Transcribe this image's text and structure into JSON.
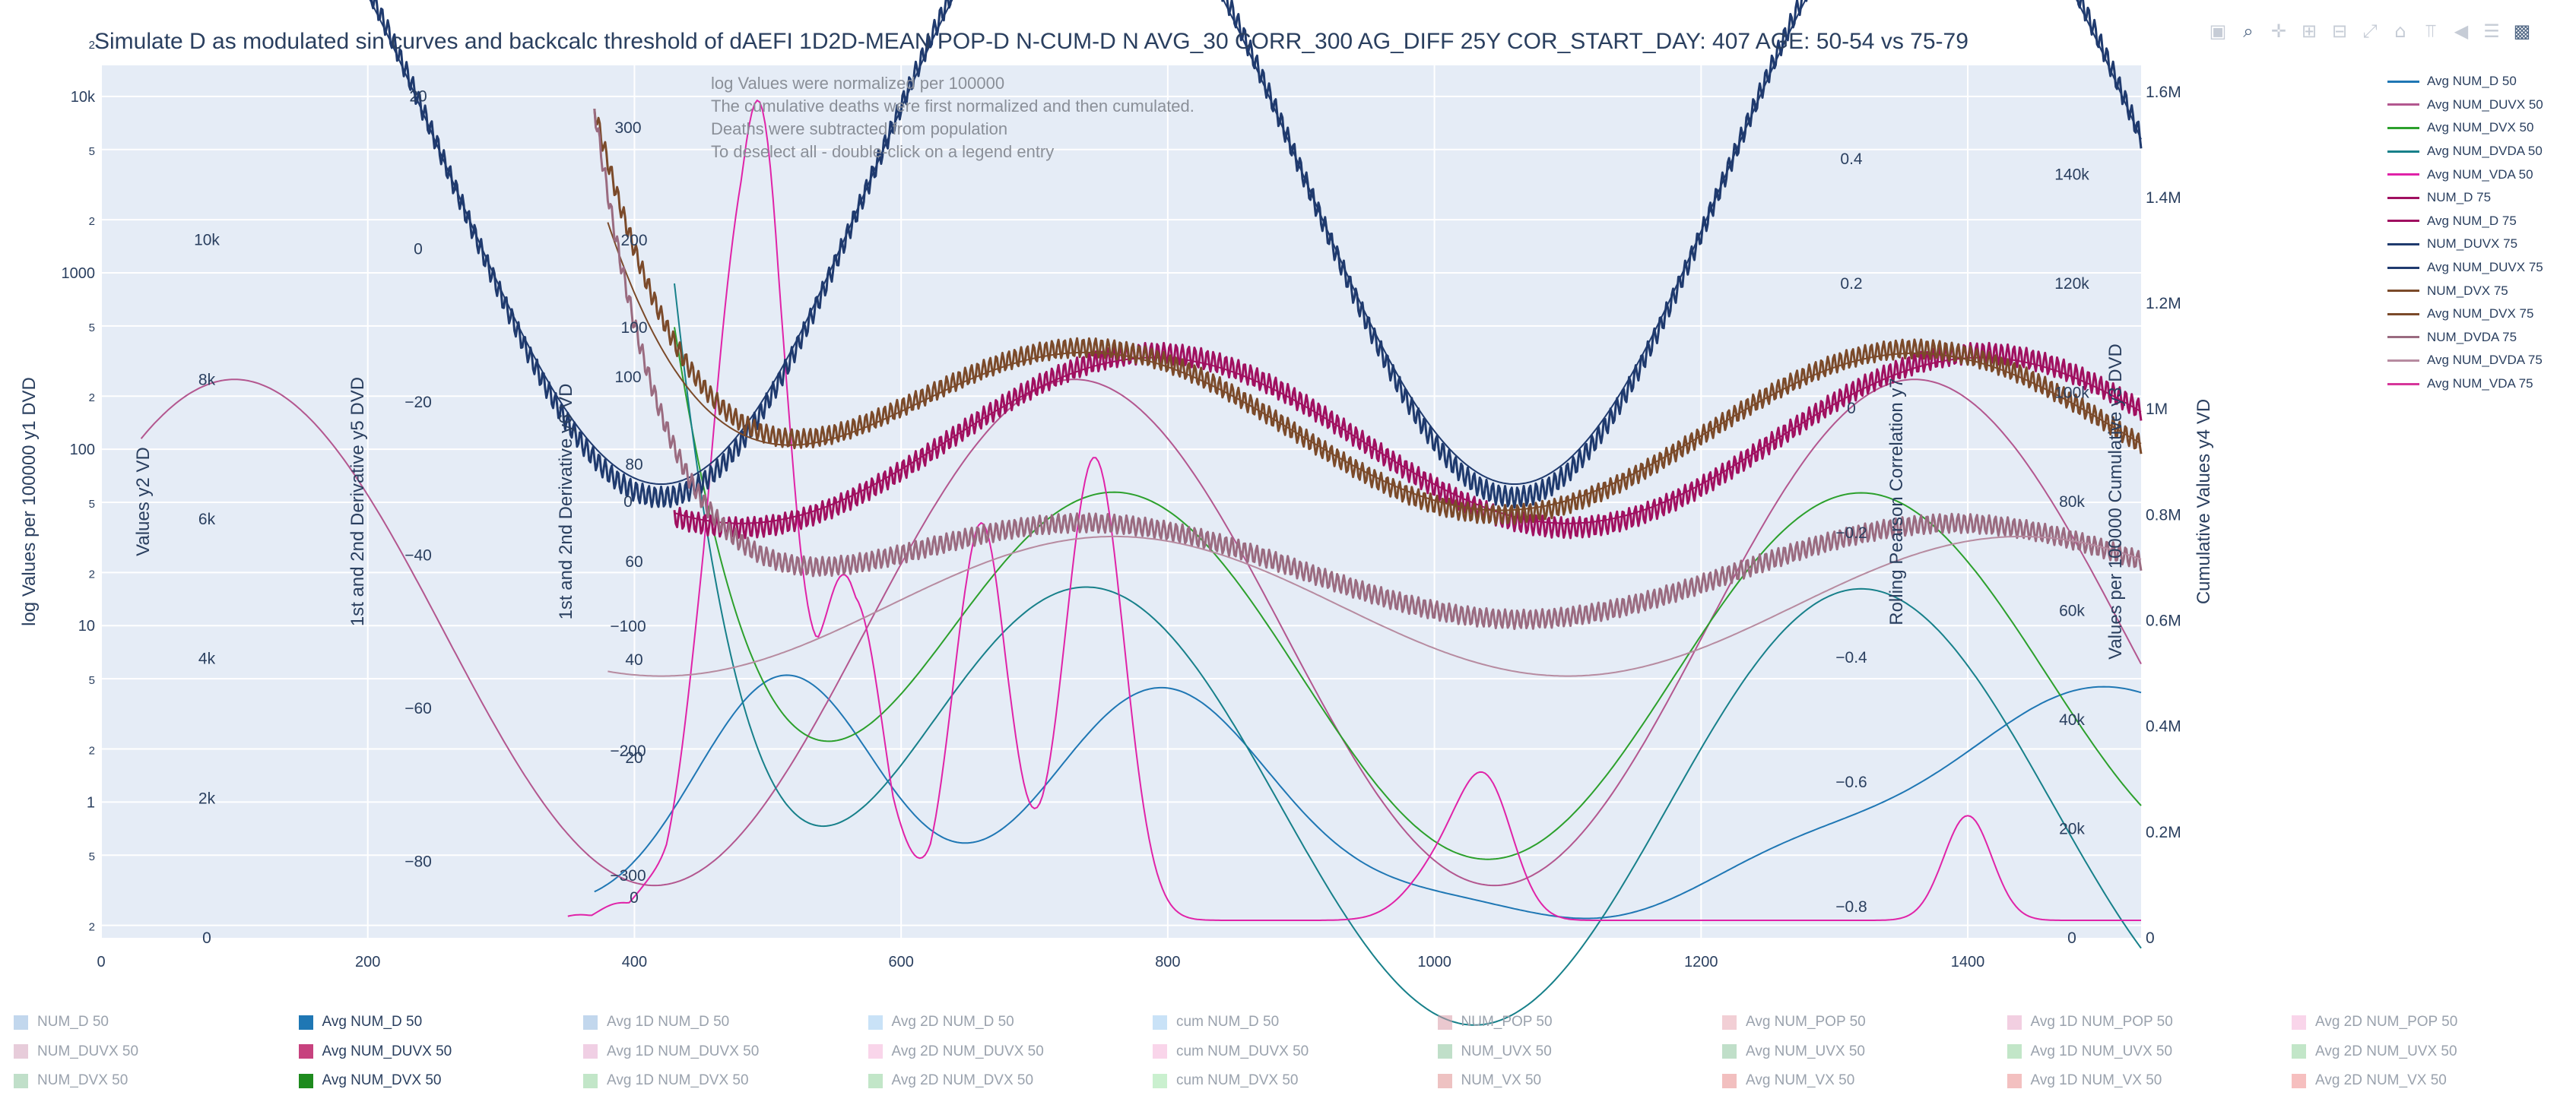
{
  "chart_data": {
    "type": "line",
    "title": "Simulate D as modulated sin curves and backcalc threshold of dAEFI 1D2D-MEAN POP-D N-CUM-D N AVG_30 CORR_300 AG_DIFF 25Y COR_START_DAY: 407 AGE: 50-54 vs 75-79",
    "annotations": [
      "log Values were normalized per 100000",
      "The cumulative deaths were first normalized and then cumulated.",
      "Deaths were subtracted from population",
      "To deselect all - double-click on a legend entry"
    ],
    "x_axis": {
      "label": "",
      "range": [
        0,
        1530
      ],
      "ticks": [
        "0",
        "200",
        "400",
        "600",
        "800",
        "1000",
        "1200",
        "1400"
      ]
    },
    "y_axes": {
      "y1": {
        "label": "log Values per 100000 y1 DVD",
        "type": "log",
        "range": [
          0.17,
          15000
        ],
        "ticks": [
          {
            "v": 0.2,
            "t": "2"
          },
          {
            "v": 0.5,
            "t": "5"
          },
          {
            "v": 1,
            "t": "1"
          },
          {
            "v": 2,
            "t": "2"
          },
          {
            "v": 5,
            "t": "5"
          },
          {
            "v": 10,
            "t": "10"
          },
          {
            "v": 20,
            "t": "2"
          },
          {
            "v": 50,
            "t": "5"
          },
          {
            "v": 100,
            "t": "100"
          },
          {
            "v": 200,
            "t": "2"
          },
          {
            "v": 500,
            "t": "5"
          },
          {
            "v": 1000,
            "t": "1000"
          },
          {
            "v": 2000,
            "t": "2"
          },
          {
            "v": 5000,
            "t": "5"
          },
          {
            "v": 10000,
            "t": "10k"
          },
          {
            "v": 20000,
            "t": "2"
          }
        ]
      },
      "y2": {
        "label": "Values y2 VD",
        "ticks": [
          "0",
          "2k",
          "4k",
          "6k",
          "8k",
          "10k"
        ],
        "range": [
          0,
          12500
        ]
      },
      "y5": {
        "label": "1st and 2nd Derivative y5 DVD",
        "ticks": [
          "−80",
          "−60",
          "−40",
          "−20",
          "0",
          "20"
        ],
        "range": [
          -90,
          24
        ]
      },
      "y6": {
        "label": "1st and 2nd Derivative y6 VD",
        "ticks": [
          "−300",
          "−200",
          "−100",
          "0",
          "100",
          "300"
        ],
        "range": [
          -350,
          350
        ]
      },
      "y6b": {
        "ticks": [
          "0",
          "20",
          "40",
          "60",
          "80",
          "100",
          "200"
        ]
      },
      "y7": {
        "label": "Rolling Pearson Correlation y7",
        "ticks": [
          "−0.8",
          "−0.6",
          "−0.4",
          "−0.2",
          "0",
          "0.2",
          "0.4"
        ],
        "range": [
          -0.85,
          0.55
        ]
      },
      "y3": {
        "label": "Values per 100000 Cumulative y3 DVD",
        "ticks": [
          "0",
          "20k",
          "40k",
          "60k",
          "80k",
          "100k",
          "120k",
          "140k"
        ],
        "range": [
          0,
          160000
        ]
      },
      "y4": {
        "label": "Cumulative Values y4 VD",
        "ticks": [
          "0",
          "0.2M",
          "0.4M",
          "0.6M",
          "0.8M",
          "1M",
          "1.2M",
          "1.4M",
          "1.6M"
        ],
        "range": [
          0,
          1650000
        ]
      }
    },
    "series": [
      {
        "name": "Avg NUM_D 50",
        "color": "#1f77b4",
        "shape": "bump",
        "start": 370,
        "base": 0.2,
        "peaks": [
          [
            510,
            1.0,
            70
          ],
          [
            800,
            0.95,
            90
          ],
          [
            1510,
            0.95,
            160
          ]
        ],
        "mins": [
          [
            940,
            0.2,
            50
          ],
          [
            1330,
            0.35,
            40
          ]
        ]
      },
      {
        "name": "Avg NUM_DUVX 50",
        "color": "#b3578f",
        "shape": "sine",
        "start": 30,
        "center": 0.35,
        "amp": 0.58,
        "period": 630,
        "phase": 100
      },
      {
        "name": "Avg NUM_DVX 50",
        "color": "#2ca02c",
        "shape": "decay",
        "start": 430,
        "v0": 0.7,
        "center": 0.3,
        "amp": 0.42,
        "period": 560,
        "phase": 760
      },
      {
        "name": "Avg NUM_DVDA 50",
        "color": "#17808a",
        "shape": "decay",
        "start": 430,
        "v0": 0.75,
        "center": 0.15,
        "amp": 0.5,
        "period": 580,
        "phase": 740
      },
      {
        "name": "Avg NUM_VDA 50",
        "color": "#e023a8",
        "shape": "spikes",
        "start": 350,
        "base": 0.2
      },
      {
        "name": "NUM_D 75",
        "color": "#a01060",
        "shape": "osc",
        "start": 430,
        "center": 0.57,
        "amp": 0.2,
        "period": 620,
        "phase": 790
      },
      {
        "name": "Avg NUM_D 75",
        "color": "#a01060",
        "shape": "sine",
        "start": 430,
        "center": 0.57,
        "amp": 0.19,
        "period": 620,
        "phase": 790
      },
      {
        "name": "NUM_DUVX 75",
        "color": "#1f3a6e",
        "shape": "osc",
        "start": 0,
        "center": 0.88,
        "amp": 0.75,
        "period": 640,
        "phase": 100
      },
      {
        "name": "Avg NUM_DUVX 75",
        "color": "#1f3a6e",
        "shape": "sine",
        "start": 0,
        "center": 0.88,
        "amp": 0.72,
        "period": 640,
        "phase": 100
      },
      {
        "name": "NUM_DVX 75",
        "color": "#7b4a2a",
        "shape": "oscdrop",
        "start": 370,
        "center": 0.58,
        "amp": 0.19,
        "period": 620,
        "phase": 740
      },
      {
        "name": "Avg NUM_DVX 75",
        "color": "#7b4a2a",
        "shape": "sinedrop",
        "start": 380,
        "center": 0.58,
        "amp": 0.18,
        "period": 620,
        "phase": 740
      },
      {
        "name": "NUM_DVDA 75",
        "color": "#9a6b80",
        "shape": "oscdrop2",
        "start": 370,
        "center": 0.42,
        "amp": 0.11,
        "period": 650,
        "phase": 740
      },
      {
        "name": "Avg NUM_DVDA 75",
        "color": "#b78ba0",
        "shape": "sine",
        "start": 380,
        "center": 0.38,
        "amp": 0.16,
        "period": 680,
        "phase": 760
      },
      {
        "name": "Avg NUM_VDA 75",
        "color": "#d6369a",
        "shape": "none"
      }
    ]
  },
  "legend_right": [
    {
      "label": "Avg NUM_D 50",
      "color": "#1f77b4"
    },
    {
      "label": "Avg NUM_DUVX 50",
      "color": "#b3578f"
    },
    {
      "label": "Avg NUM_DVX 50",
      "color": "#2ca02c"
    },
    {
      "label": "Avg NUM_DVDA 50",
      "color": "#17808a"
    },
    {
      "label": "Avg NUM_VDA 50",
      "color": "#e023a8"
    },
    {
      "label": "NUM_D 75",
      "color": "#a01060"
    },
    {
      "label": "Avg NUM_D 75",
      "color": "#a01060"
    },
    {
      "label": "NUM_DUVX 75",
      "color": "#1f3a6e"
    },
    {
      "label": "Avg NUM_DUVX 75",
      "color": "#1f3a6e"
    },
    {
      "label": "NUM_DVX 75",
      "color": "#7b4a2a"
    },
    {
      "label": "Avg NUM_DVX 75",
      "color": "#7b4a2a"
    },
    {
      "label": "NUM_DVDA 75",
      "color": "#9a6b80"
    },
    {
      "label": "Avg NUM_DVDA 75",
      "color": "#b78ba0"
    },
    {
      "label": "Avg NUM_VDA 75",
      "color": "#d6369a"
    }
  ],
  "legend_bottom": [
    {
      "label": "NUM_D 50",
      "color": "#8fb7df",
      "active": false
    },
    {
      "label": "Avg NUM_D 50",
      "color": "#1f77b4",
      "active": true
    },
    {
      "label": "Avg 1D NUM_D 50",
      "color": "#8fb7df",
      "active": false
    },
    {
      "label": "Avg 2D NUM_D 50",
      "color": "#9ccaf0",
      "active": false
    },
    {
      "label": "cum NUM_D 50",
      "color": "#9ccaf0",
      "active": false
    },
    {
      "label": "NUM_POP 50",
      "color": "#d99aa8",
      "active": false
    },
    {
      "label": "Avg NUM_POP 50",
      "color": "#e8a7b3",
      "active": false
    },
    {
      "label": "Avg 1D NUM_POP 50",
      "color": "#e8a7c8",
      "active": false
    },
    {
      "label": "Avg 2D NUM_POP 50",
      "color": "#f4b3d9",
      "active": false
    },
    {
      "label": "NUM_DUVX 50",
      "color": "#d4a3bc",
      "active": false
    },
    {
      "label": "Avg NUM_DUVX 50",
      "color": "#c7427e",
      "active": true
    },
    {
      "label": "Avg 1D NUM_DUVX 50",
      "color": "#e3a8cd",
      "active": false
    },
    {
      "label": "Avg 2D NUM_DUVX 50",
      "color": "#f4b3d9",
      "active": false
    },
    {
      "label": "cum NUM_DUVX 50",
      "color": "#f4b3d9",
      "active": false
    },
    {
      "label": "NUM_UVX 50",
      "color": "#8cc59c",
      "active": false
    },
    {
      "label": "Avg NUM_UVX 50",
      "color": "#8cc59c",
      "active": false
    },
    {
      "label": "Avg 1D NUM_UVX 50",
      "color": "#8fd29a",
      "active": false
    },
    {
      "label": "Avg 2D NUM_UVX 50",
      "color": "#8fd29a",
      "active": false
    },
    {
      "label": "NUM_DVX 50",
      "color": "#8cc59c",
      "active": false
    },
    {
      "label": "Avg NUM_DVX 50",
      "color": "#1e8b1e",
      "active": true
    },
    {
      "label": "Avg 1D NUM_DVX 50",
      "color": "#8fd29a",
      "active": false
    },
    {
      "label": "Avg 2D NUM_DVX 50",
      "color": "#8fd29a",
      "active": false
    },
    {
      "label": "cum NUM_DVX 50",
      "color": "#9fe3a8",
      "active": false
    },
    {
      "label": "NUM_VX 50",
      "color": "#e08f8f",
      "active": false
    },
    {
      "label": "Avg NUM_VX 50",
      "color": "#e88a8a",
      "active": false
    },
    {
      "label": "Avg 1D NUM_VX 50",
      "color": "#ea8c8c",
      "active": false
    },
    {
      "label": "Avg 2D NUM_VX 50",
      "color": "#ef8b8b",
      "active": false
    }
  ],
  "modebar": [
    {
      "name": "camera-icon",
      "glyph": "▣",
      "active": false
    },
    {
      "name": "zoom-icon",
      "glyph": "⌕",
      "active": true
    },
    {
      "name": "pan-icon",
      "glyph": "✛",
      "active": false
    },
    {
      "name": "zoom-in-icon",
      "glyph": "⊞",
      "active": false
    },
    {
      "name": "zoom-out-icon",
      "glyph": "⊟",
      "active": false
    },
    {
      "name": "autoscale-icon",
      "glyph": "⤢",
      "active": false
    },
    {
      "name": "home-icon",
      "glyph": "⌂",
      "active": false
    },
    {
      "name": "spike-lines-icon",
      "glyph": "⫪",
      "active": false
    },
    {
      "name": "hover-closest-icon",
      "glyph": "◀",
      "active": false
    },
    {
      "name": "hover-compare-icon",
      "glyph": "☰",
      "active": false
    },
    {
      "name": "plotly-logo-icon",
      "glyph": "▩",
      "active": true
    }
  ]
}
